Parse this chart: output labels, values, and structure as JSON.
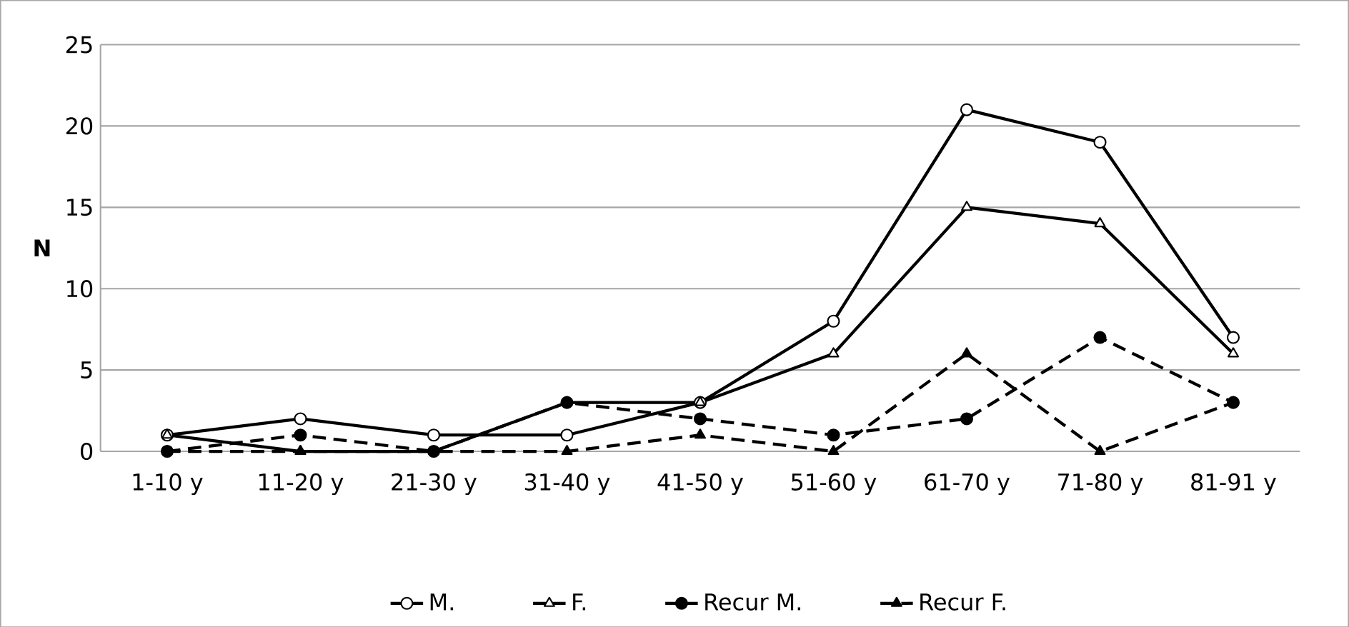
{
  "chart_data": {
    "type": "line",
    "ylabel": "N",
    "categories": [
      "1-10 y",
      "11-20 y",
      "21-30 y",
      "31-40 y",
      "41-50 y",
      "51-60 y",
      "61-70 y",
      "71-80 y",
      "81-91 y"
    ],
    "series": [
      {
        "name": "M.",
        "color": "#000000",
        "marker": "circle",
        "line_style": "solid",
        "values": [
          1,
          2,
          1,
          1,
          3,
          8,
          21,
          19,
          7
        ]
      },
      {
        "name": "F.",
        "color": "#000000",
        "marker": "triangle",
        "line_style": "solid",
        "values": [
          1,
          0,
          0,
          3,
          3,
          6,
          15,
          14,
          6
        ]
      },
      {
        "name": "Recur M.",
        "color": "#000000",
        "marker": "circle",
        "line_style": "dashed",
        "values": [
          0,
          1,
          0,
          3,
          2,
          1,
          2,
          7,
          3
        ]
      },
      {
        "name": "Recur F.",
        "color": "#000000",
        "marker": "triangle",
        "line_style": "dashed",
        "values": [
          0,
          0,
          0,
          0,
          1,
          0,
          6,
          0,
          3
        ]
      }
    ],
    "ylim": [
      0,
      25
    ],
    "yticks": [
      0,
      5,
      10,
      15,
      20,
      25
    ],
    "grid": "y",
    "legend": "bottom"
  }
}
